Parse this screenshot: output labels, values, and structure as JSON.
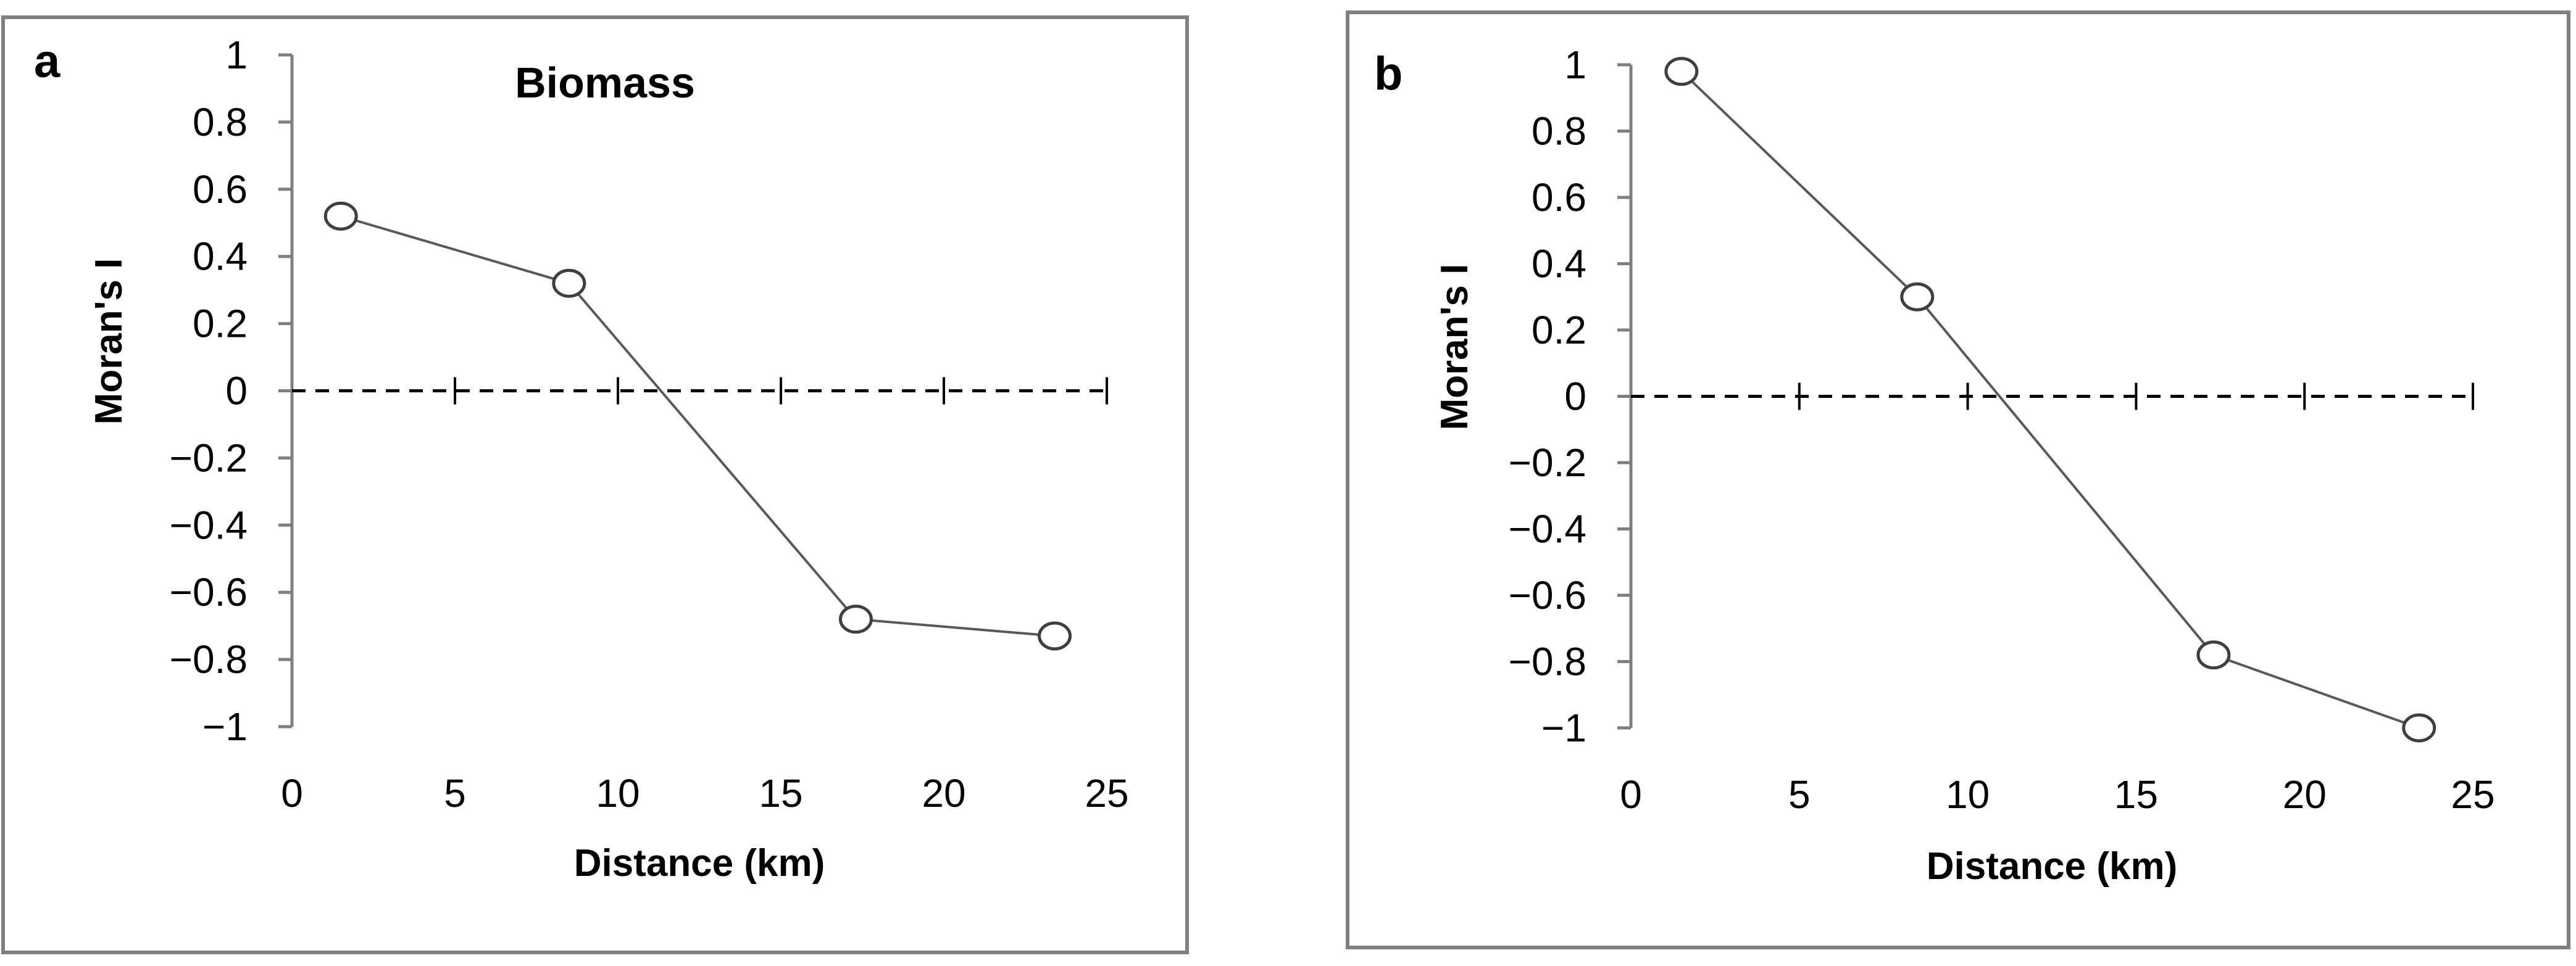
{
  "chart_data": [
    {
      "type": "line",
      "panel_label": "a",
      "title": "Biomass",
      "xlabel": "Distance (km)",
      "ylabel": "Moran's I",
      "xlim": [
        0,
        25
      ],
      "ylim": [
        -1,
        1
      ],
      "x_ticks": [
        0,
        5,
        10,
        15,
        20,
        25
      ],
      "x_tick_labels": [
        "0",
        "5",
        "10",
        "15",
        "20",
        "25"
      ],
      "y_ticks": [
        1,
        0.8,
        0.6,
        0.4,
        0.2,
        0,
        -0.2,
        -0.4,
        -0.6,
        -0.8,
        -1
      ],
      "y_tick_labels": [
        "1",
        "0.8",
        "0.6",
        "0.4",
        "0.2",
        "0",
        "-0.2",
        "-0.4",
        "-0.6",
        "-0.8",
        "-1"
      ],
      "zero_reference_line": "dashed",
      "series": [
        {
          "name": "Moran's I",
          "x": [
            1.5,
            8.5,
            17.3,
            23.4
          ],
          "values": [
            0.52,
            0.32,
            -0.68,
            -0.73
          ]
        }
      ]
    },
    {
      "type": "line",
      "panel_label": "b",
      "title": "",
      "xlabel": "Distance (km)",
      "ylabel": "Moran's I",
      "xlim": [
        0,
        25
      ],
      "ylim": [
        -1,
        1
      ],
      "x_ticks": [
        0,
        5,
        10,
        15,
        20,
        25
      ],
      "x_tick_labels": [
        "0",
        "5",
        "10",
        "15",
        "20",
        "25"
      ],
      "y_ticks": [
        1,
        0.8,
        0.6,
        0.4,
        0.2,
        0,
        -0.2,
        -0.4,
        -0.6,
        -0.8,
        -1
      ],
      "y_tick_labels": [
        "1",
        "0.8",
        "0.6",
        "0.4",
        "0.2",
        "0",
        "-0.2",
        "-0.4",
        "-0.6",
        "-0.8",
        "-1"
      ],
      "zero_reference_line": "dashed",
      "series": [
        {
          "name": "Moran's I",
          "x": [
            1.5,
            8.5,
            17.3,
            23.4
          ],
          "values": [
            0.98,
            0.3,
            -0.78,
            -1.0
          ]
        }
      ]
    }
  ]
}
